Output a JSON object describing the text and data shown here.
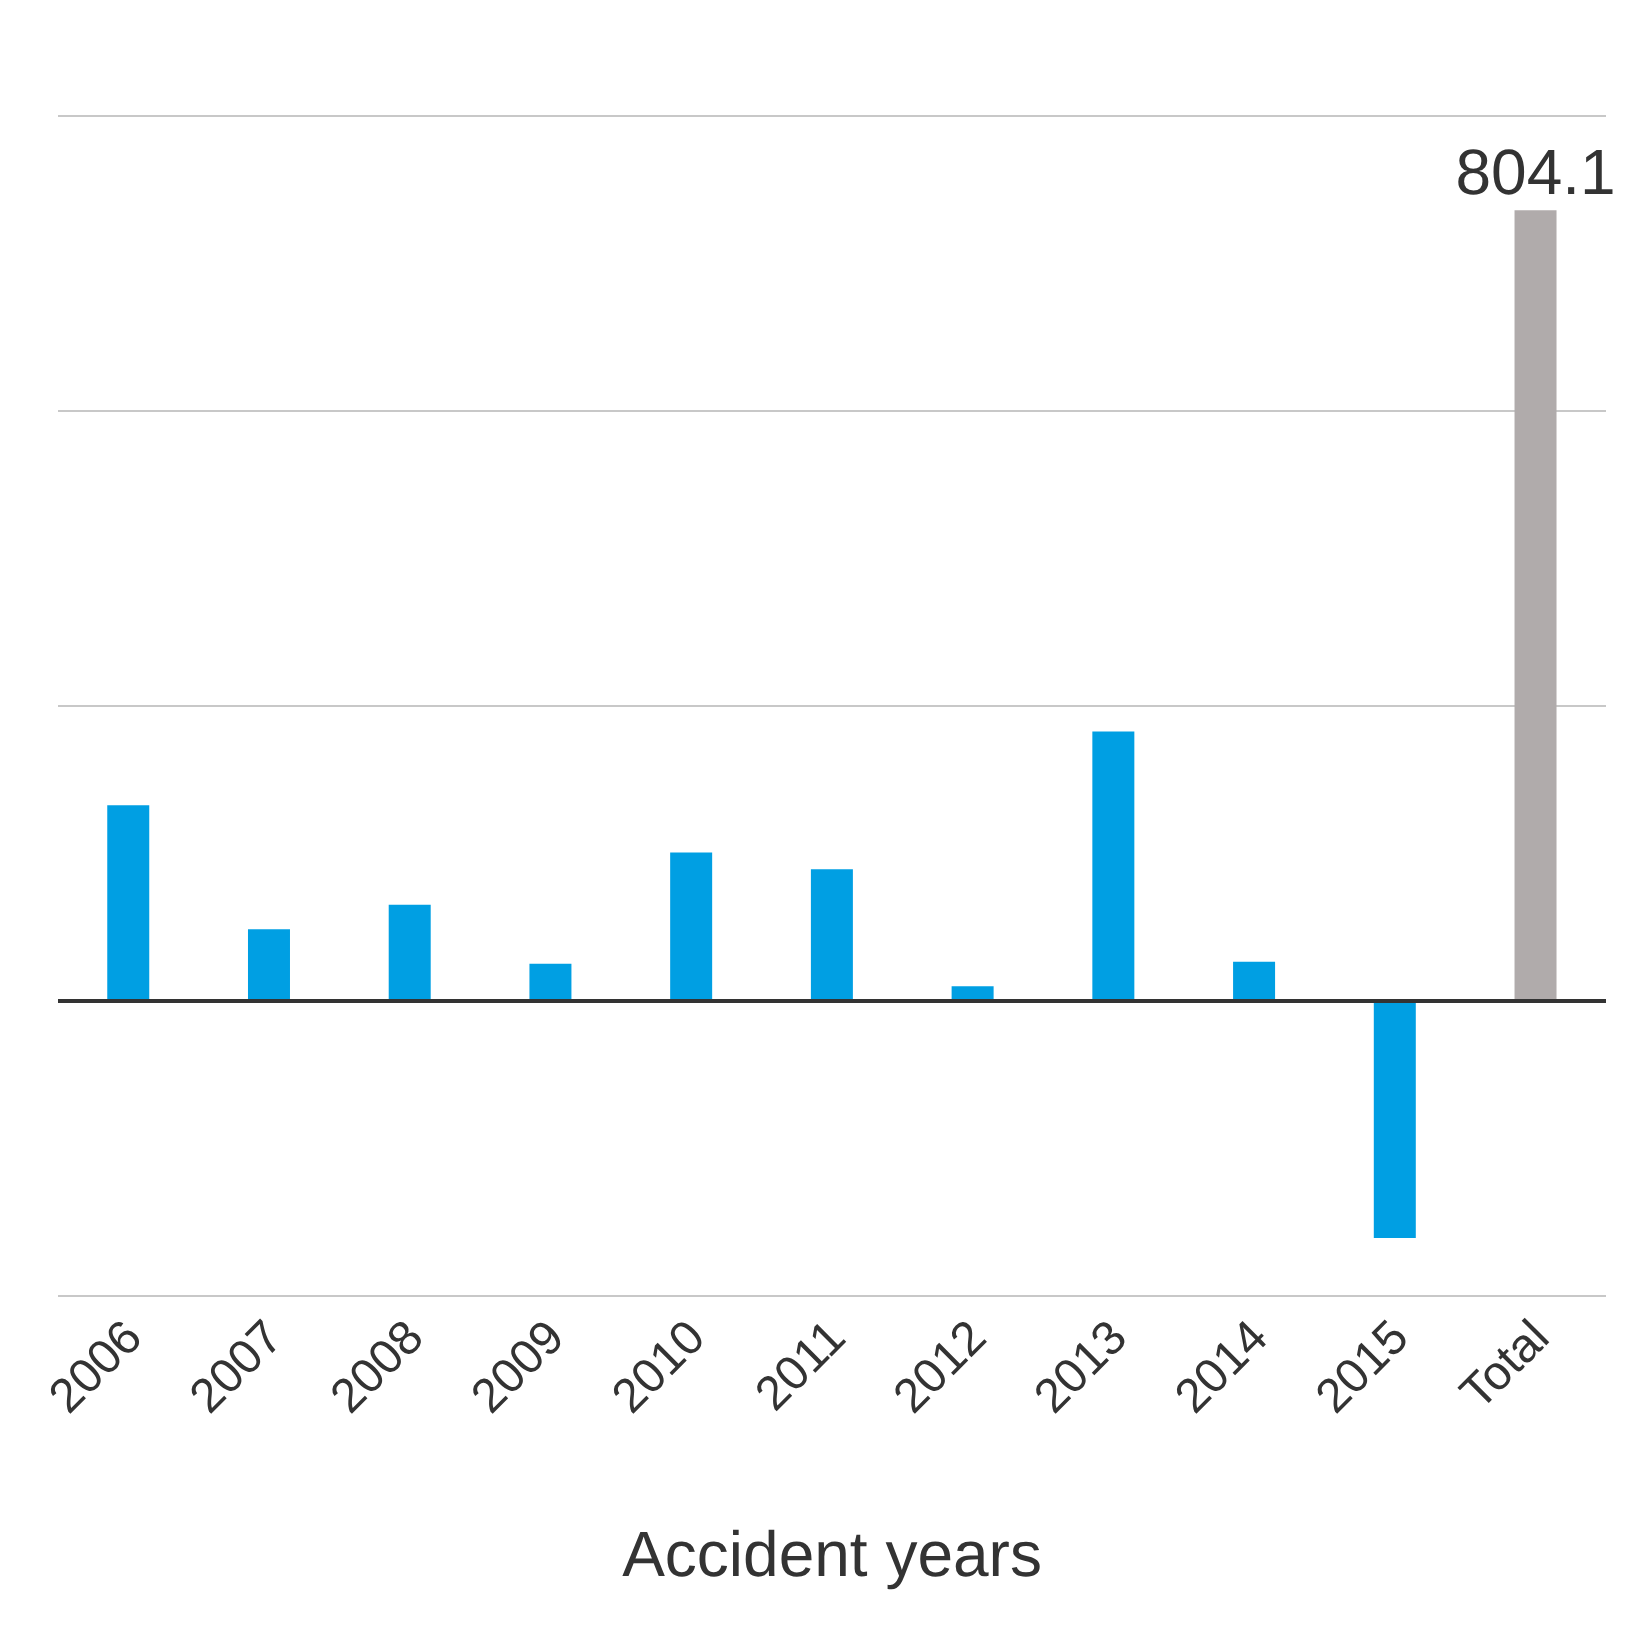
{
  "chart_data": {
    "type": "bar",
    "xlabel": "Accident years",
    "categories": [
      "2006",
      "2007",
      "2008",
      "2009",
      "2010",
      "2011",
      "2012",
      "2013",
      "2014",
      "2015",
      "Total"
    ],
    "values": [
      199,
      73,
      98,
      38,
      151,
      134,
      15,
      274,
      40,
      -241,
      804.1
    ],
    "colors": [
      "#009fe3",
      "#009fe3",
      "#009fe3",
      "#009fe3",
      "#009fe3",
      "#009fe3",
      "#009fe3",
      "#009fe3",
      "#009fe3",
      "#009fe3",
      "#b0abab"
    ],
    "value_labels": [
      null,
      null,
      null,
      null,
      null,
      null,
      null,
      null,
      null,
      null,
      "804.1"
    ],
    "ylim": [
      -300,
      900
    ],
    "yticks": [
      {
        "value": -300,
        "label": null
      },
      {
        "value": 0,
        "label": null
      },
      {
        "value": 300,
        "label": null
      },
      {
        "value": 600,
        "label": null
      },
      {
        "value": 900,
        "label": null
      }
    ],
    "tick_labels": "x",
    "grid": "y"
  }
}
